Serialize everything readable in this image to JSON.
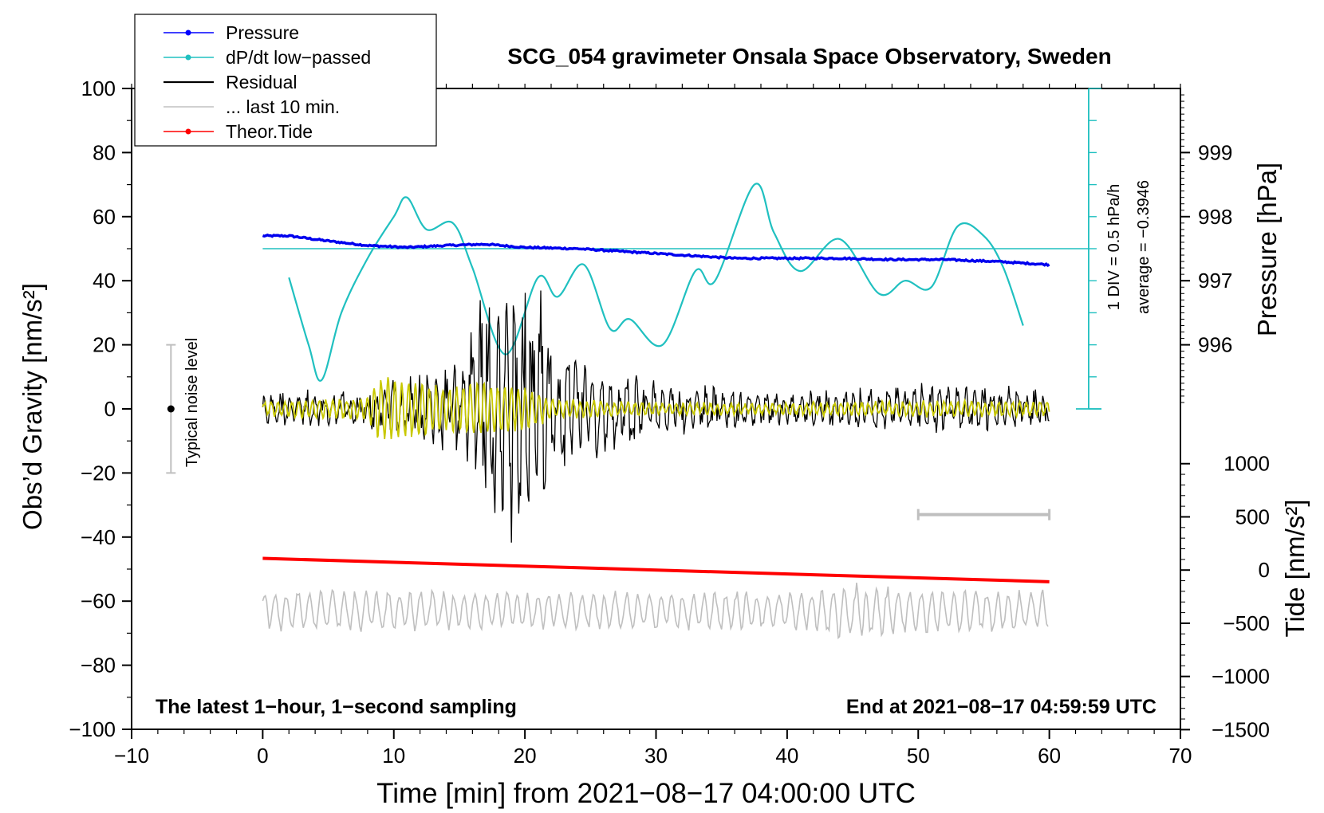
{
  "chart_data": {
    "type": "line",
    "title": "SCG_054 gravimeter Onsala Space Observatory, Sweden",
    "xlabel": "Time [min] from 2021−08−17 04:00:00 UTC",
    "ylabel_left": "Obs’d Gravity [nm/s²]",
    "ylabel_right_top": "Pressure [hPa]",
    "ylabel_right_bottom": "Tide [nm/s²]",
    "xlim": [
      -10,
      70
    ],
    "ylim_left": [
      -100,
      100
    ],
    "x_ticks": [
      -10,
      0,
      10,
      20,
      30,
      40,
      50,
      60,
      70
    ],
    "x_tick_labels": [
      "−10",
      "0",
      "10",
      "20",
      "30",
      "40",
      "50",
      "60",
      "70"
    ],
    "y_ticks_left": [
      -100,
      -80,
      -60,
      -40,
      -20,
      0,
      20,
      40,
      60,
      80,
      100
    ],
    "y_tick_labels_left": [
      "−100",
      "−80",
      "−60",
      "−40",
      "−20",
      "0",
      "20",
      "40",
      "60",
      "80",
      "100"
    ],
    "pressure_ticks": [
      996,
      997,
      998,
      999
    ],
    "pressure_tick_labels": [
      "996",
      "997",
      "998",
      "999"
    ],
    "tide_ticks": [
      -1500,
      -1000,
      -500,
      0,
      500,
      1000
    ],
    "tide_tick_labels": [
      "−1500",
      "−1000",
      "−500",
      "0",
      "500",
      "1000"
    ],
    "pressure_axis_range": [
      995.0,
      999.95
    ],
    "tide_axis_range": [
      -1500,
      1000
    ],
    "legend": {
      "position": "top-left",
      "entries": [
        {
          "label": "Pressure",
          "color": "#0000ff",
          "marker": true
        },
        {
          "label": "dP/dt low−passed",
          "color": "#20c0c0",
          "marker": true
        },
        {
          "label": "Residual",
          "color": "#000000",
          "marker": false
        },
        {
          "label": "... last 10 min.",
          "color": "#c0c0c0",
          "marker": false
        },
        {
          "label": "Theor.Tide",
          "color": "#ff0000",
          "marker": true
        }
      ]
    },
    "series": [
      {
        "name": "Pressure",
        "axis": "pressure",
        "x": [
          0,
          2,
          5,
          8,
          11,
          14,
          17,
          20,
          24,
          28,
          32,
          36,
          40,
          44,
          48,
          52,
          56,
          60
        ],
        "values": [
          997.7,
          997.7,
          997.62,
          997.55,
          997.52,
          997.55,
          997.57,
          997.52,
          997.5,
          997.45,
          997.4,
          997.35,
          997.35,
          997.35,
          997.33,
          997.33,
          997.3,
          997.25
        ]
      },
      {
        "name": "dP/dt low−passed",
        "axis": "dpdt",
        "x": [
          2,
          3.5,
          4.5,
          6,
          8,
          10,
          11,
          12.5,
          14.5,
          16,
          18.5,
          21,
          22.5,
          24.5,
          26.5,
          28,
          30.5,
          33,
          34.5,
          37.5,
          39,
          41,
          44,
          47,
          49,
          51,
          53,
          55,
          56.5,
          58
        ],
        "values": [
          41,
          20,
          9,
          30,
          47,
          60,
          66,
          56,
          58,
          44,
          17,
          41,
          35,
          45,
          25,
          28,
          20,
          43,
          40,
          70,
          55,
          43,
          53,
          36,
          40,
          38,
          57,
          54,
          44,
          26
        ]
      },
      {
        "name": "dP/dt zero reference",
        "axis": "dpdt",
        "x": [
          0,
          63
        ],
        "values": [
          50,
          50
        ]
      },
      {
        "name": "Residual",
        "axis": "gravity",
        "x": [
          0,
          60
        ],
        "values": [
          0,
          0
        ],
        "envelope": {
          "x": [
            0,
            8,
            10,
            14,
            16,
            17,
            18,
            19,
            20,
            21,
            22,
            24,
            26,
            28,
            30,
            35,
            40,
            45,
            50,
            55,
            60
          ],
          "values": [
            5,
            5,
            10,
            12,
            20,
            35,
            40,
            42,
            40,
            35,
            20,
            15,
            13,
            12,
            8,
            6,
            5,
            6,
            7,
            7,
            6
          ]
        }
      },
      {
        "name": "Residual (filtered)",
        "axis": "gravity",
        "color": "#c8c800",
        "x": [
          0,
          60
        ],
        "values": [
          0,
          0
        ],
        "envelope": {
          "x": [
            0,
            8,
            9,
            10,
            12,
            14,
            16,
            18,
            20,
            22,
            25,
            30,
            40,
            50,
            60
          ],
          "values": [
            2,
            3,
            10,
            9,
            8,
            6,
            8,
            7,
            6,
            3,
            2,
            1.5,
            1.5,
            2,
            2
          ]
        }
      },
      {
        "name": "... last 10 min.",
        "axis": "gravity",
        "x": [
          0,
          60
        ],
        "values": [
          -63,
          -63
        ],
        "envelope": {
          "x": [
            0,
            42,
            44.5,
            47,
            50,
            60
          ],
          "values": [
            6,
            6,
            9,
            8,
            7,
            6
          ]
        }
      },
      {
        "name": "Theor.Tide",
        "axis": "tide",
        "x": [
          0,
          60
        ],
        "values": [
          110,
          -110
        ]
      }
    ],
    "noise_bar": {
      "x": -7,
      "y_low": -20,
      "y_high": 20,
      "label": "Typical noise level"
    },
    "scale_bar_10min": {
      "x_start": 50,
      "x_end": 60,
      "y": -33
    },
    "dpdt_scale": {
      "label_div": "1 DIV = 0.5 hPa/h",
      "label_avg": "average = −0.3946",
      "x": 63,
      "y_bottom": 0,
      "y_top": 100,
      "div_step": 10
    },
    "annotations": {
      "bottom_left": "The latest 1−hour, 1−second sampling",
      "bottom_right": "End at 2021−08−17 04:59:59 UTC"
    }
  }
}
